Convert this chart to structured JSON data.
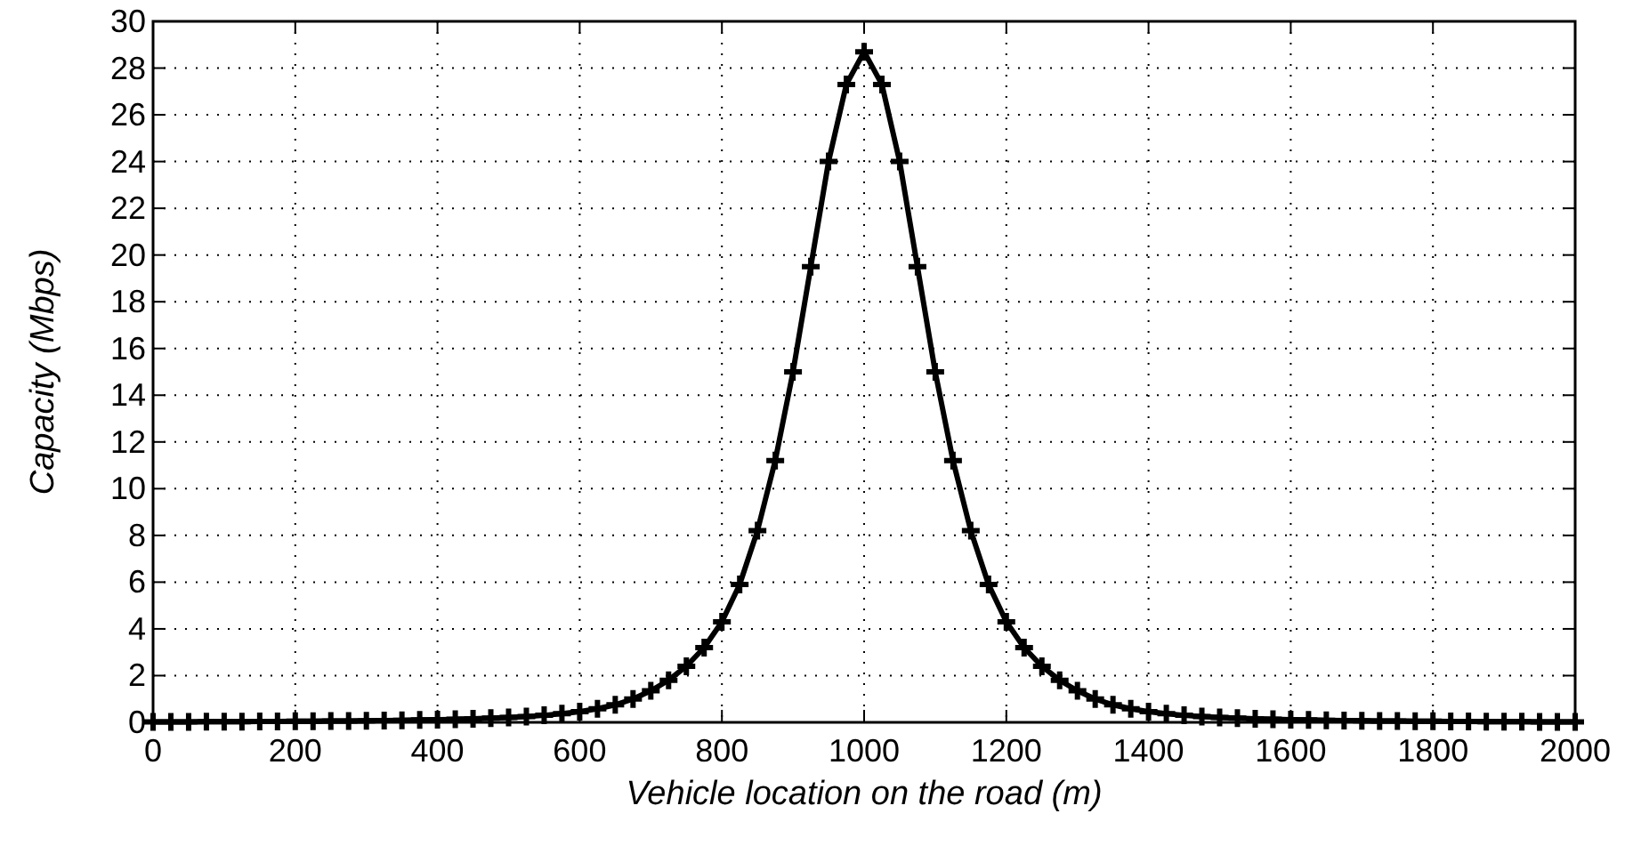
{
  "chart_data": {
    "type": "line",
    "xlabel": "Vehicle location on the road (m)",
    "ylabel": "Capacity (Mbps)",
    "x": [
      0,
      25,
      50,
      75,
      100,
      125,
      150,
      175,
      200,
      225,
      250,
      275,
      300,
      325,
      350,
      375,
      400,
      425,
      450,
      475,
      500,
      525,
      550,
      575,
      600,
      625,
      650,
      675,
      700,
      725,
      750,
      775,
      800,
      825,
      850,
      875,
      900,
      925,
      950,
      975,
      1000,
      1025,
      1050,
      1075,
      1100,
      1125,
      1150,
      1175,
      1200,
      1225,
      1250,
      1275,
      1300,
      1325,
      1350,
      1375,
      1400,
      1425,
      1450,
      1475,
      1500,
      1525,
      1550,
      1575,
      1600,
      1625,
      1650,
      1675,
      1700,
      1725,
      1750,
      1775,
      1800,
      1825,
      1850,
      1875,
      1900,
      1925,
      1950,
      1975,
      2000
    ],
    "series": [
      {
        "color": "#000000",
        "values": [
          0.02,
          0.02,
          0.02,
          0.03,
          0.03,
          0.03,
          0.04,
          0.04,
          0.05,
          0.05,
          0.06,
          0.06,
          0.07,
          0.08,
          0.09,
          0.1,
          0.11,
          0.13,
          0.15,
          0.18,
          0.21,
          0.25,
          0.3,
          0.37,
          0.46,
          0.58,
          0.75,
          1.0,
          1.35,
          1.8,
          2.4,
          3.2,
          4.3,
          5.9,
          8.2,
          11.2,
          15.0,
          19.5,
          24.0,
          27.3,
          28.7,
          27.3,
          24.0,
          19.5,
          15.0,
          11.2,
          8.2,
          5.9,
          4.3,
          3.2,
          2.4,
          1.8,
          1.35,
          1.0,
          0.75,
          0.58,
          0.46,
          0.37,
          0.3,
          0.25,
          0.21,
          0.18,
          0.15,
          0.13,
          0.11,
          0.1,
          0.09,
          0.08,
          0.07,
          0.06,
          0.06,
          0.05,
          0.05,
          0.04,
          0.04,
          0.03,
          0.03,
          0.03,
          0.02,
          0.02,
          0.02
        ]
      }
    ],
    "xlim": [
      0,
      2000
    ],
    "xticks": [
      0,
      200,
      400,
      600,
      800,
      1000,
      1200,
      1400,
      1600,
      1800,
      2000
    ],
    "ylim": [
      0,
      30
    ],
    "yticks": [
      0,
      2,
      4,
      6,
      8,
      10,
      12,
      14,
      16,
      18,
      20,
      22,
      24,
      26,
      28,
      30
    ],
    "grid": true,
    "marker": "cross",
    "line_style": "solid"
  }
}
